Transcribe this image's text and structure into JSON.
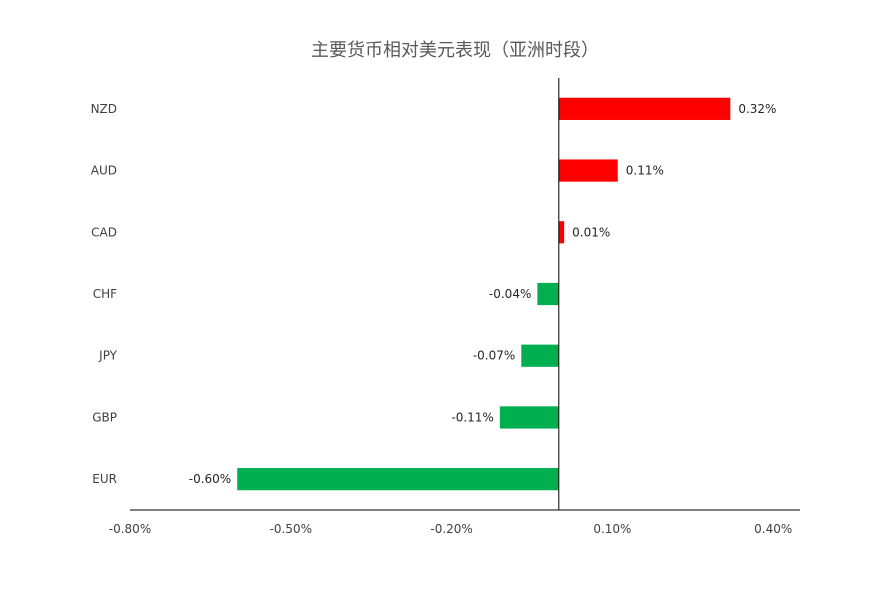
{
  "chart_data": {
    "type": "bar",
    "orientation": "horizontal",
    "title": "主要货币相对美元表现（亚洲时段）",
    "xlabel": "",
    "ylabel": "",
    "categories": [
      "NZD",
      "AUD",
      "CAD",
      "CHF",
      "JPY",
      "GBP",
      "EUR"
    ],
    "values": [
      0.32,
      0.11,
      0.01,
      -0.04,
      -0.07,
      -0.11,
      -0.6
    ],
    "data_labels": [
      "0.32%",
      "0.11%",
      "0.01%",
      "-0.04%",
      "-0.07%",
      "-0.11%",
      "-0.60%"
    ],
    "xlim": [
      -0.8,
      0.45
    ],
    "x_ticks": [
      -0.8,
      -0.5,
      -0.2,
      0.1,
      0.4
    ],
    "x_tick_labels": [
      "-0.80%",
      "-0.50%",
      "-0.20%",
      "0.10%",
      "0.40%"
    ],
    "grid": false,
    "legend": "none",
    "colors": {
      "positive": "#ff0000",
      "negative": "#00b050",
      "axis": "#000000"
    }
  }
}
